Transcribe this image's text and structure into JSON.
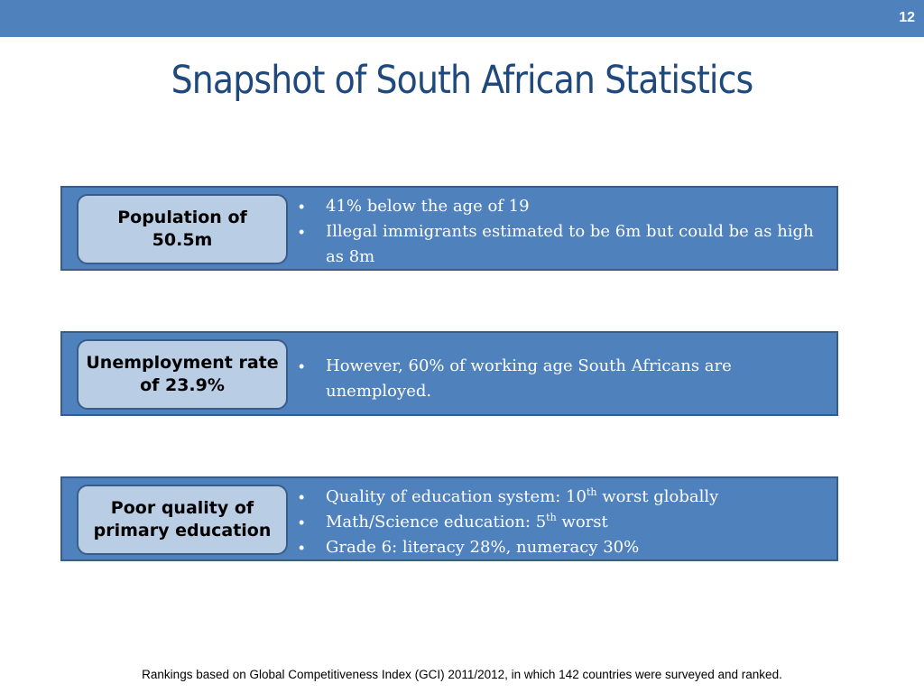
{
  "slide": {
    "number": "12",
    "title": "Snapshot of South African Statistics"
  },
  "blocks": [
    {
      "label": "Population of 50.5m",
      "bullets": [
        {
          "text": "41% below the age of 19"
        },
        {
          "text": "Illegal immigrants estimated to be 6m but could be as high as 8m"
        }
      ]
    },
    {
      "label": "Unemployment rate of 23.9%",
      "bullets": [
        {
          "text": "However, 60% of working age South Africans are unemployed."
        }
      ]
    },
    {
      "label": "Poor quality of primary education",
      "bullets": [
        {
          "pre": "Quality of education system: 10",
          "sup": "th",
          "post": " worst globally"
        },
        {
          "pre": "Math/Science education: 5",
          "sup": "th",
          "post": " worst"
        },
        {
          "text": "Grade 6: literacy 28%, numeracy 30%"
        }
      ]
    }
  ],
  "footnote": "Rankings based on Global Competitiveness Index (GCI) 2011/2012, in which 142 countries were surveyed and ranked.",
  "colors": {
    "header_bar": "#4f81bd",
    "title": "#1f497d",
    "block_fill": "#4f81bd",
    "block_border": "#385d8a",
    "label_fill": "#b9cde5"
  }
}
